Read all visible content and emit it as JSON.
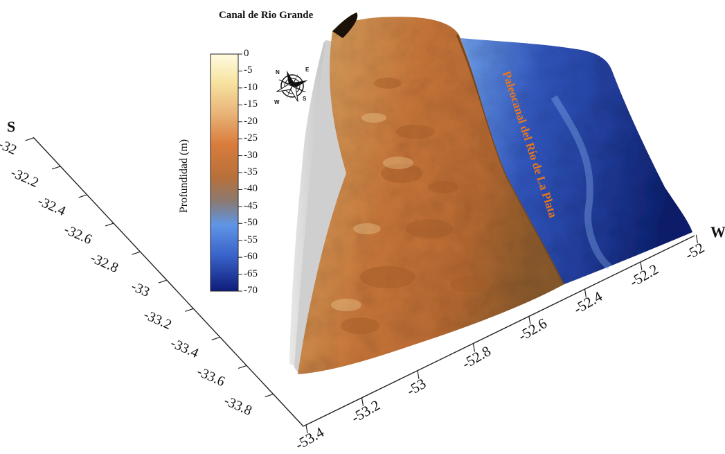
{
  "map": {
    "title_label": "Canal de Rio Grande",
    "feature_label": "Paleocanal del Río de La Plata",
    "axis_lat_letter": "S",
    "axis_lon_letter": "W",
    "lat_ticks": [
      "-32",
      "-32.2",
      "-32.4",
      "-32.6",
      "-32.8",
      "-33",
      "-33.2",
      "-33.4",
      "-33.6",
      "-33.8"
    ],
    "lon_ticks": [
      "-53.4",
      "-53.2",
      "-53",
      "-52.8",
      "-52.6",
      "-52.4",
      "-52.2",
      "-52"
    ]
  },
  "colorbar": {
    "title": "Profundidad (m)",
    "ticks": [
      "0",
      "-5",
      "-10",
      "-15",
      "-20",
      "-25",
      "-30",
      "-35",
      "-40",
      "-45",
      "-50",
      "-55",
      "-60",
      "-65",
      "-70"
    ],
    "colors": [
      "#fffbe0",
      "#f7e3a0",
      "#e8b478",
      "#d97c3c",
      "#b8703a",
      "#8a7a70",
      "#5f95e6",
      "#3a63c9",
      "#0e1c7a"
    ]
  },
  "compass": {
    "n": "N",
    "e": "E",
    "s": "S",
    "w": "W"
  },
  "terrain_colors": {
    "shelf_light": "#d9a865",
    "shelf_mid": "#c9773a",
    "shelf_dark": "#8a5a2c",
    "channel_light": "#6fa0ea",
    "channel_mid": "#3358c0",
    "channel_deep": "#0c1f6e",
    "shadow": "#c8c8c8"
  }
}
